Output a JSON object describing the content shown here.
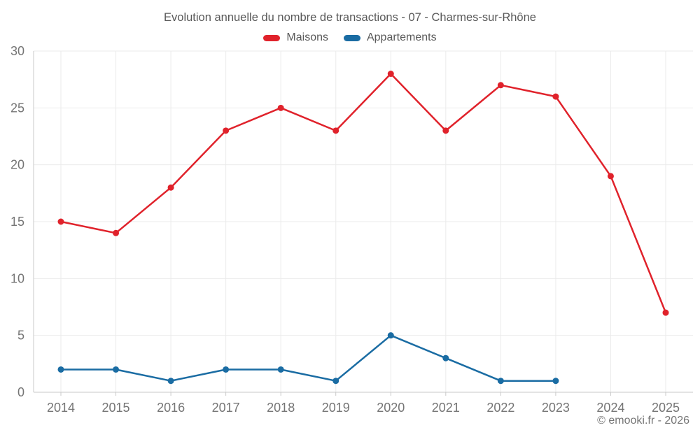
{
  "footer": {
    "copyright": "© emooki.fr - 2026"
  },
  "chart_data": {
    "type": "line",
    "title": "Evolution annuelle du nombre de transactions - 07 - Charmes-sur-Rhône",
    "categories": [
      "2014",
      "2015",
      "2016",
      "2017",
      "2018",
      "2019",
      "2020",
      "2021",
      "2022",
      "2023",
      "2024",
      "2025"
    ],
    "series": [
      {
        "name": "Maisons",
        "color": "#e0222b",
        "values": [
          15,
          14,
          18,
          23,
          25,
          23,
          28,
          23,
          27,
          26,
          19,
          7
        ]
      },
      {
        "name": "Appartements",
        "color": "#1a6ca3",
        "values": [
          2,
          2,
          1,
          2,
          2,
          1,
          5,
          3,
          1,
          1,
          null,
          null
        ]
      }
    ],
    "xlabel": "",
    "ylabel": "",
    "ylim": [
      0,
      30
    ],
    "yticks": [
      0,
      5,
      10,
      15,
      20,
      25,
      30
    ],
    "grid": true,
    "legend_position": "top-center",
    "style": {
      "grid_color": "#ebebeb",
      "axis_color": "#c9c9c9",
      "tick_label_color": "#757575",
      "title_color": "#595959",
      "marker_radius": 4.5,
      "line_width": 2.5
    }
  }
}
